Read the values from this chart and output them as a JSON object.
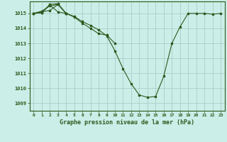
{
  "title": "Graphe pression niveau de la mer (hPa)",
  "bg_color": "#cceee8",
  "grid_color": "#aad4cc",
  "line_color": "#2d5a1e",
  "xlim": [
    -0.5,
    23.5
  ],
  "ylim": [
    1008.5,
    1015.8
  ],
  "yticks": [
    1009,
    1010,
    1011,
    1012,
    1013,
    1014,
    1015
  ],
  "xticks": [
    0,
    1,
    2,
    3,
    4,
    5,
    6,
    7,
    8,
    9,
    10,
    11,
    12,
    13,
    14,
    15,
    16,
    17,
    18,
    19,
    20,
    21,
    22,
    23
  ],
  "series": [
    [
      1015.0,
      1015.1,
      1015.2,
      1015.6,
      1015.0,
      1014.8,
      1014.45,
      1014.2,
      1013.9,
      1013.5,
      1012.5,
      1011.3,
      1010.3,
      1009.55,
      1009.4,
      1009.45,
      1010.8,
      1013.0,
      1014.1,
      1015.0,
      1015.0,
      1015.0,
      1014.95,
      1015.0
    ],
    [
      1015.0,
      1015.15,
      1015.5,
      1015.6,
      1015.0,
      1014.75,
      1014.35,
      1014.0,
      1013.65,
      1013.55,
      1013.0,
      null,
      null,
      null,
      null,
      null,
      null,
      null,
      null,
      null,
      null,
      null,
      null,
      null
    ],
    [
      1015.0,
      1015.05,
      1015.6,
      1015.65,
      1015.0,
      null,
      null,
      null,
      null,
      null,
      null,
      null,
      null,
      null,
      null,
      null,
      null,
      null,
      null,
      null,
      null,
      null,
      null,
      null
    ],
    [
      1015.0,
      1015.05,
      1015.55,
      1015.1,
      1015.0,
      null,
      null,
      null,
      null,
      null,
      null,
      null,
      null,
      null,
      null,
      null,
      null,
      null,
      null,
      null,
      null,
      null,
      null,
      null
    ]
  ]
}
